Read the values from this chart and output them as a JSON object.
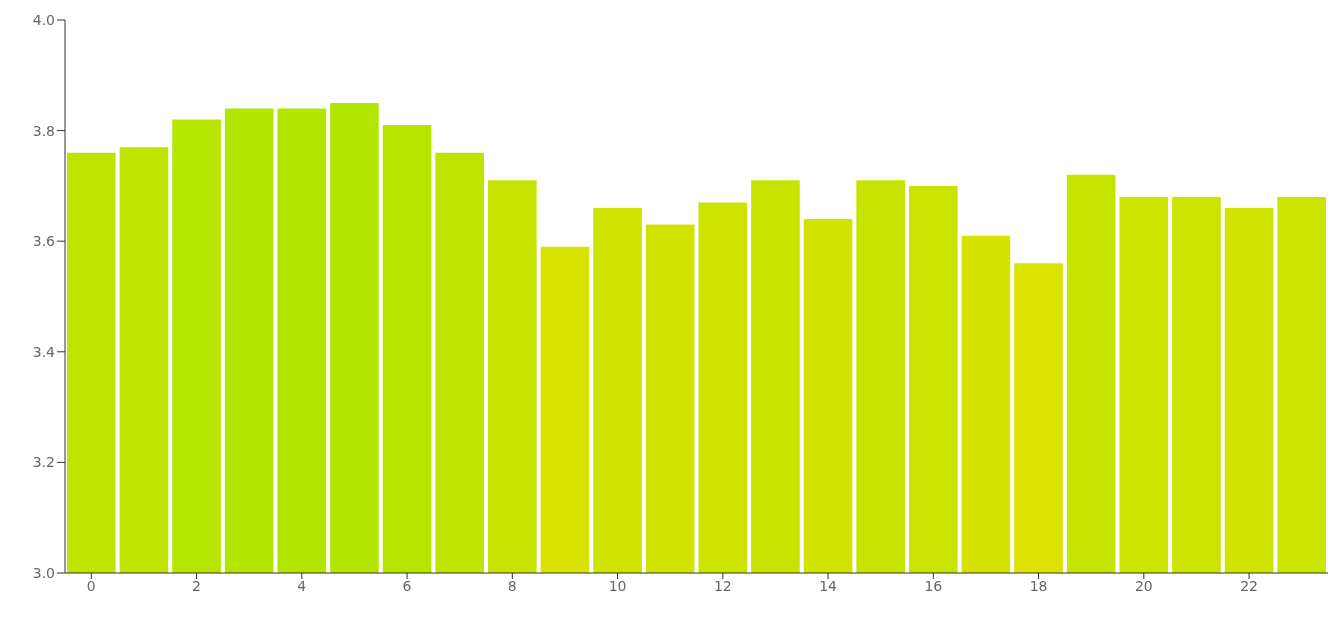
{
  "chart_data": {
    "type": "bar",
    "x": [
      0,
      1,
      2,
      3,
      4,
      5,
      6,
      7,
      8,
      9,
      10,
      11,
      12,
      13,
      14,
      15,
      16,
      17,
      18,
      19,
      20,
      21,
      22,
      23
    ],
    "values": [
      3.76,
      3.77,
      3.82,
      3.84,
      3.84,
      3.85,
      3.81,
      3.76,
      3.71,
      3.59,
      3.66,
      3.63,
      3.67,
      3.71,
      3.64,
      3.71,
      3.7,
      3.61,
      3.56,
      3.72,
      3.68,
      3.68,
      3.66,
      3.68
    ],
    "colors": [
      "#bfe400",
      "#bee400",
      "#b6e500",
      "#b3e500",
      "#b3e500",
      "#b2e600",
      "#b8e500",
      "#bfe400",
      "#c7e400",
      "#d9e300",
      "#cee400",
      "#d3e300",
      "#cde400",
      "#c7e400",
      "#d1e300",
      "#c7e400",
      "#c8e400",
      "#d6e300",
      "#dde300",
      "#c5e400",
      "#cbe400",
      "#cbe400",
      "#cee400",
      "#cbe400"
    ],
    "xlim": [
      -0.5,
      23.5
    ],
    "xticks": [
      0,
      2,
      4,
      6,
      8,
      10,
      12,
      14,
      16,
      18,
      20,
      22
    ],
    "ylim": [
      3.0,
      4.0
    ],
    "yticks": [
      {
        "value": 3,
        "label": "3.0"
      },
      3.2,
      3.4,
      3.6,
      3.8,
      {
        "value": 4,
        "label": "4.0"
      }
    ],
    "grid": false,
    "legend": false
  }
}
